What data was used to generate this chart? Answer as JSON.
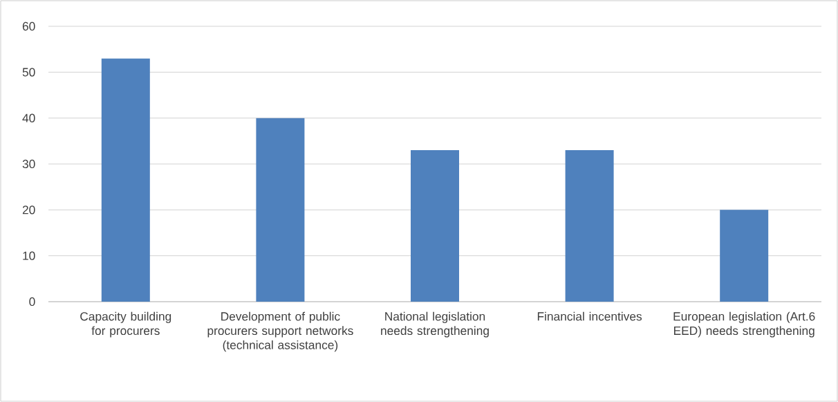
{
  "chart_data": {
    "type": "bar",
    "categories": [
      "Capacity building for procurers",
      "Development of public procurers support networks (technical assistance)",
      "National legislation needs strengthening",
      "Financial incentives",
      "European legislation (Art.6 EED) needs strengthening"
    ],
    "values": [
      53,
      40,
      33,
      33,
      20
    ],
    "color": "#4f81bd",
    "ylim": [
      0,
      60
    ],
    "yticks": [
      0,
      10,
      20,
      30,
      40,
      50,
      60
    ],
    "grid": "y"
  }
}
